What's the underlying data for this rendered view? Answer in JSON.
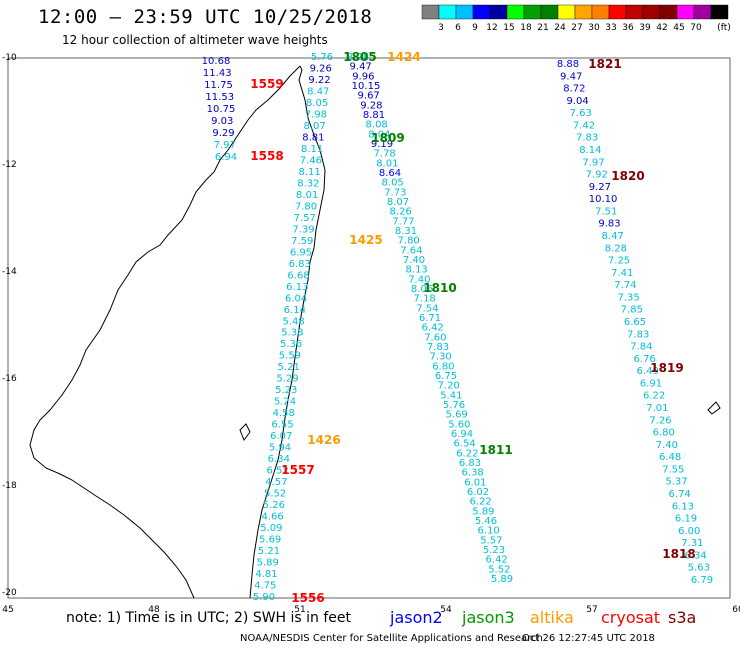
{
  "header": {
    "title": "12:00 – 23:59 UTC 10/25/2018",
    "subtitle": "12 hour collection of altimeter wave heights"
  },
  "scale": {
    "unit": "(ft)",
    "colors": [
      "#808080",
      "#00ffff",
      "#00bfff",
      "#0000ff",
      "#0000a0",
      "#00ff00",
      "#00a000",
      "#008000",
      "#ffff00",
      "#ffa500",
      "#ff8000",
      "#ff0000",
      "#c00000",
      "#a00000",
      "#800000",
      "#ff00ff",
      "#a000a0",
      "#000000"
    ],
    "labels": [
      "3",
      "6",
      "9",
      "12",
      "15",
      "18",
      "21",
      "24",
      "27",
      "30",
      "33",
      "36",
      "39",
      "42",
      "45",
      "70"
    ]
  },
  "axes": {
    "lon_labels": [
      "45",
      "48",
      "51",
      "54",
      "57",
      "60"
    ],
    "lat_labels": [
      "-10",
      "-12",
      "-14",
      "-16",
      "-18",
      "-20"
    ]
  },
  "map": {
    "time_labels": [
      {
        "t": "1805",
        "c": "#008000"
      },
      {
        "t": "1424",
        "c": "#ff9900"
      },
      {
        "t": "1559",
        "c": "#ff0000"
      },
      {
        "t": "1558",
        "c": "#ff0000"
      },
      {
        "t": "1809",
        "c": "#008000"
      },
      {
        "t": "1425",
        "c": "#ff9900"
      },
      {
        "t": "1810",
        "c": "#008000"
      },
      {
        "t": "1426",
        "c": "#ff9900"
      },
      {
        "t": "1557",
        "c": "#ff0000"
      },
      {
        "t": "1811",
        "c": "#008000"
      },
      {
        "t": "1556",
        "c": "#ff0000"
      },
      {
        "t": "1821",
        "c": "#800000"
      },
      {
        "t": "1820",
        "c": "#800000"
      },
      {
        "t": "1819",
        "c": "#800000"
      },
      {
        "t": "1818",
        "c": "#800000"
      }
    ],
    "tracks": {
      "cryosat": [
        "10.68",
        "11.43",
        "11.75",
        "11.53",
        "10.75",
        "9.03",
        "9.29",
        "7.97",
        "6.94"
      ],
      "jason3": [
        "5.76",
        "9.26",
        "9.22",
        "8.47",
        "8.05",
        "7.98",
        "8.07",
        "8.81",
        "8.11",
        "7.46",
        "8.11",
        "8.32",
        "8.01",
        "7.80",
        "7.57",
        "7.39",
        "7.59",
        "6.95",
        "6.83",
        "6.68",
        "6.13",
        "6.04",
        "6.14",
        "5.48",
        "5.38",
        "5.36",
        "5.59",
        "5.21",
        "5.29",
        "5.23",
        "5.24",
        "4.58",
        "6.55",
        "6.07",
        "5.94",
        "6.34",
        "6.52",
        "4.57",
        "5.52",
        "5.26",
        "4.66",
        "5.09",
        "5.69",
        "5.21",
        "5.89",
        "4.81",
        "4.75",
        "5.90"
      ],
      "jason3b": [
        "8.28",
        "9.47",
        "9.96",
        "10.15",
        "9.67",
        "9.28",
        "8.81",
        "8.08",
        "8.04",
        "9.19",
        "7.78",
        "8.01",
        "8.64",
        "8.05",
        "7.73",
        "8.07",
        "8.26",
        "7.77",
        "8.31",
        "7.80",
        "7.64",
        "7.40",
        "8.13",
        "7.40",
        "8.06",
        "7.18",
        "7.54",
        "6.71",
        "6.42",
        "7.60",
        "7.83",
        "7.30",
        "6.80",
        "6.75",
        "7.20",
        "5.41",
        "5.76",
        "5.69",
        "5.60",
        "6.94",
        "6.54",
        "6.22",
        "6.83",
        "6.38",
        "6.01",
        "6.02",
        "6.22",
        "5.89",
        "5.46",
        "6.10",
        "5.57",
        "5.23",
        "6.42",
        "5.52",
        "5.89"
      ],
      "s3a": [
        "8.88",
        "9.47",
        "8.72",
        "9.04",
        "7.63",
        "7.42",
        "7.83",
        "8.14",
        "7.97",
        "7.92",
        "9.27",
        "10.10",
        "7.51",
        "9.83",
        "8.47",
        "8.28",
        "7.25",
        "7.41",
        "7.74",
        "7.35",
        "7.85",
        "6.65",
        "7.83",
        "7.84",
        "6.76",
        "6.49",
        "6.91",
        "6.22",
        "7.01",
        "7.26",
        "6.80",
        "7.40",
        "6.48",
        "7.55",
        "5.37",
        "6.74",
        "6.13",
        "6.19",
        "6.00",
        "7.31",
        "6.34",
        "5.63",
        "6.79"
      ]
    }
  },
  "footer": {
    "note": "note: 1) Time is in UTC; 2) SWH is in feet",
    "satellites": [
      {
        "name": "jason2",
        "color": "#0000ff"
      },
      {
        "name": "jason3",
        "color": "#009900"
      },
      {
        "name": "altika",
        "color": "#ff9900"
      },
      {
        "name": "cryosat",
        "color": "#ff0000"
      },
      {
        "name": "s3a",
        "color": "#800000"
      }
    ],
    "credit": "NOAA/NESDIS Center for Satellite Applications and Research",
    "timestamp": "Oct 26 12:27:45 UTC 2018"
  }
}
